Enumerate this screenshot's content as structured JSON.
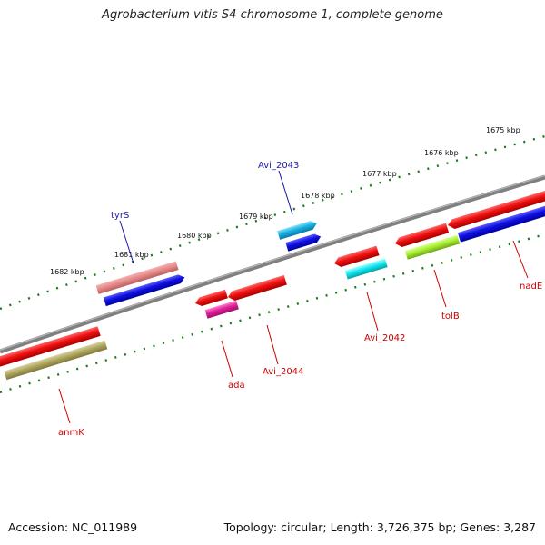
{
  "title": "Agrobacterium vitis S4 chromosome 1, complete genome",
  "footer": {
    "accession": "Accession: NC_011989",
    "topology": "Topology: circular; Length: 3,726,375 bp; Genes: 3,287"
  },
  "kbp_labels": [
    "1675 kbp",
    "1676 kbp",
    "1677 kbp",
    "1678 kbp",
    "1679 kbp",
    "1680 kbp",
    "1681 kbp",
    "1682 kbp"
  ],
  "colors": {
    "backbone": "#808080",
    "tick": "#1a7a1a",
    "label_top": "#1a1aaa",
    "label_bottom": "#cc0000"
  },
  "genes": [
    {
      "name": "tyrS",
      "color_top": "#e88a8a",
      "color_bottom": "#1010e0",
      "label_color": "#1a1aaa"
    },
    {
      "name": "Avi_2043",
      "color": "#1ab0e0",
      "label_color": "#1a1aaa"
    },
    {
      "name": "ada",
      "color": "#e0209a",
      "label_color": "#cc0000"
    },
    {
      "name": "Avi_2044",
      "color": "#ee1111",
      "label_color": "#cc0000"
    },
    {
      "name": "Avi_2042",
      "color": "#10e8f0",
      "label_color": "#cc0000"
    },
    {
      "name": "tolB",
      "color": "#a8ee30",
      "label_color": "#cc0000"
    },
    {
      "name": "nadE",
      "color": "#1020e0",
      "label_color": "#cc0000"
    },
    {
      "name": "anmK",
      "color": "#b0a860",
      "label_color": "#cc0000"
    }
  ]
}
